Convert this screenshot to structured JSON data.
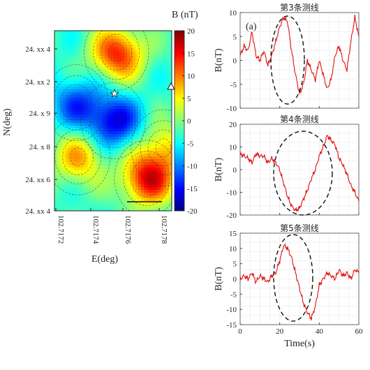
{
  "chart_data": [
    {
      "type": "heatmap",
      "xlabel": "E(deg)",
      "ylabel": "N(deg)",
      "x_ticks": [
        "102.7172",
        "102.7174",
        "102.7176",
        "102.7178"
      ],
      "y_ticks": [
        "24. xx 4",
        "24. xx 2",
        "24. x 9",
        "24. x 8",
        "24. xx 6",
        "24. xx 4"
      ],
      "colorbar": {
        "title": "B (nT)",
        "ticks": [
          20,
          15,
          10,
          5,
          0,
          -5,
          -10,
          -15,
          -20
        ],
        "range": [
          -20,
          20
        ]
      },
      "features": [
        {
          "kind": "low",
          "x": 102.71755,
          "y": 0.5,
          "value": -16
        },
        {
          "kind": "low",
          "x": 102.71733,
          "y": 0.6,
          "value": -12
        },
        {
          "kind": "high",
          "x": 102.71757,
          "y": 0.88,
          "value": 14
        },
        {
          "kind": "high",
          "x": 102.71775,
          "y": 0.18,
          "value": 15
        },
        {
          "kind": "high",
          "x": 102.71734,
          "y": 0.3,
          "value": 8
        },
        {
          "kind": "high",
          "x": 102.71785,
          "y": 0.35,
          "value": 6
        }
      ],
      "markers": [
        "star",
        "triangle"
      ]
    },
    {
      "type": "line",
      "title": "第3条测线",
      "ylabel": "B(nT)",
      "panel_label": "(a)",
      "ylim": [
        -10,
        10
      ],
      "y_ticks": [
        10,
        5,
        0,
        -5,
        -10
      ],
      "x_ticks": [
        "0",
        "20",
        "40",
        "60"
      ],
      "x": [
        0,
        2,
        4,
        6,
        8,
        10,
        12,
        14,
        16,
        18,
        20,
        22,
        24,
        26,
        28,
        30,
        32,
        34,
        36,
        38,
        40,
        42,
        44,
        46,
        48,
        50,
        52,
        54,
        56,
        58,
        60
      ],
      "values": [
        1,
        3,
        2,
        6,
        1,
        0,
        2,
        -1,
        1,
        4,
        7,
        9,
        8,
        2,
        -3,
        -7,
        -5,
        0,
        -2,
        -4,
        0,
        -3,
        -6,
        -4,
        1,
        3,
        0,
        -2,
        4,
        9,
        5
      ]
    },
    {
      "type": "line",
      "title": "第4条测线",
      "ylabel": "B(nT)",
      "ylim": [
        -20,
        20
      ],
      "y_ticks": [
        20,
        10,
        0,
        -10,
        -20
      ],
      "x_ticks": [
        "0",
        "20",
        "40",
        "60"
      ],
      "x": [
        0,
        2,
        4,
        6,
        8,
        10,
        12,
        14,
        16,
        18,
        20,
        22,
        24,
        26,
        28,
        30,
        32,
        34,
        36,
        38,
        40,
        42,
        44,
        46,
        48,
        50,
        52,
        54,
        56,
        58,
        60
      ],
      "values": [
        7,
        6,
        5,
        3,
        7,
        6,
        6,
        3,
        5,
        3,
        0,
        -6,
        -12,
        -16,
        -18,
        -17,
        -13,
        -9,
        -4,
        0,
        6,
        10,
        15,
        13,
        11,
        5,
        2,
        -2,
        -7,
        -10,
        -14
      ]
    },
    {
      "type": "line",
      "title": "第5条测线",
      "ylabel": "B(nT)",
      "xlabel": "Time(s)",
      "ylim": [
        -15,
        15
      ],
      "y_ticks": [
        15,
        10,
        5,
        0,
        -5,
        -10,
        -15
      ],
      "x_ticks": [
        "0",
        "20",
        "40",
        "60"
      ],
      "x": [
        0,
        2,
        4,
        6,
        8,
        10,
        12,
        14,
        16,
        18,
        20,
        22,
        24,
        26,
        28,
        30,
        32,
        34,
        36,
        38,
        40,
        42,
        44,
        46,
        48,
        50,
        52,
        54,
        56,
        58,
        60
      ],
      "values": [
        0,
        1,
        0,
        2,
        -1,
        1,
        0,
        -1,
        1,
        2,
        6,
        11,
        10,
        7,
        2,
        -3,
        -8,
        -11,
        -13,
        -9,
        -2,
        0,
        2,
        1,
        0,
        3,
        1,
        2,
        0,
        3,
        2
      ]
    }
  ]
}
